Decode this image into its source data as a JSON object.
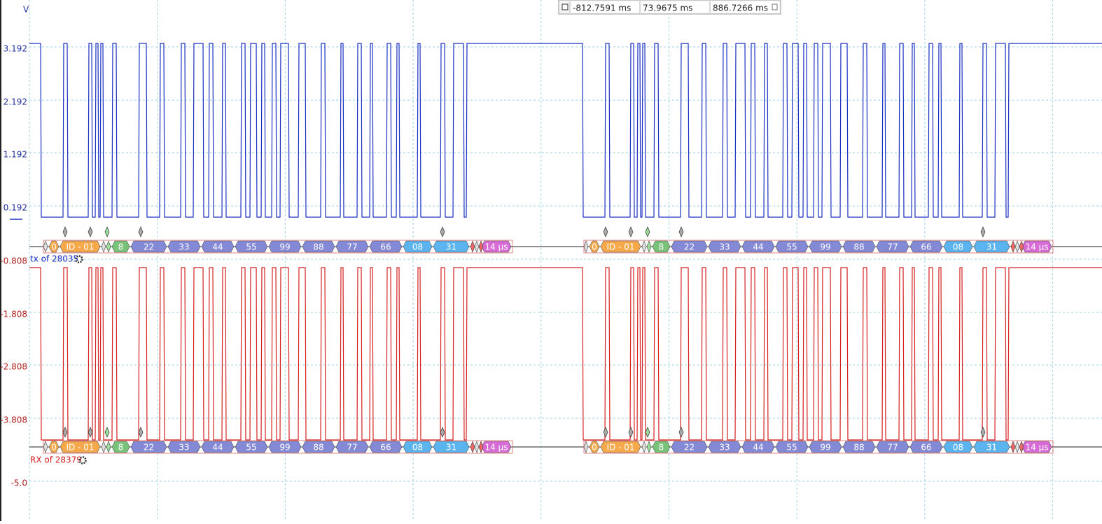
{
  "unit": "V",
  "y_axis_labels": [
    "3.192",
    "2.192",
    "1.192",
    "0.192",
    "-0.808",
    "-1.808",
    "-2.808",
    "-3.808",
    "-5.0"
  ],
  "cursors": [
    "-812.7591 ms",
    "73.9675 ms",
    "886.7266 ms"
  ],
  "channels": [
    {
      "label": "tx of 28035",
      "frames": [
        [
          "0",
          "ID - 01",
          "8",
          "22",
          "33",
          "44",
          "55",
          "99",
          "88",
          "77",
          "66",
          "08",
          "31",
          "14 µs"
        ],
        [
          "0",
          "ID - 01",
          "8",
          "22",
          "33",
          "44",
          "55",
          "99",
          "88",
          "77",
          "66",
          "08",
          "31",
          "14 µs"
        ]
      ]
    },
    {
      "label": "RX of 28379",
      "frames": [
        [
          "0",
          "ID - 01",
          "8",
          "22",
          "33",
          "44",
          "55",
          "99",
          "88",
          "77",
          "66",
          "08",
          "31",
          "14 µs"
        ],
        [
          "0",
          "ID - 01",
          "8",
          "22",
          "33",
          "44",
          "55",
          "99",
          "88",
          "77",
          "66",
          "08",
          "31",
          "14 µs"
        ]
      ]
    }
  ]
}
